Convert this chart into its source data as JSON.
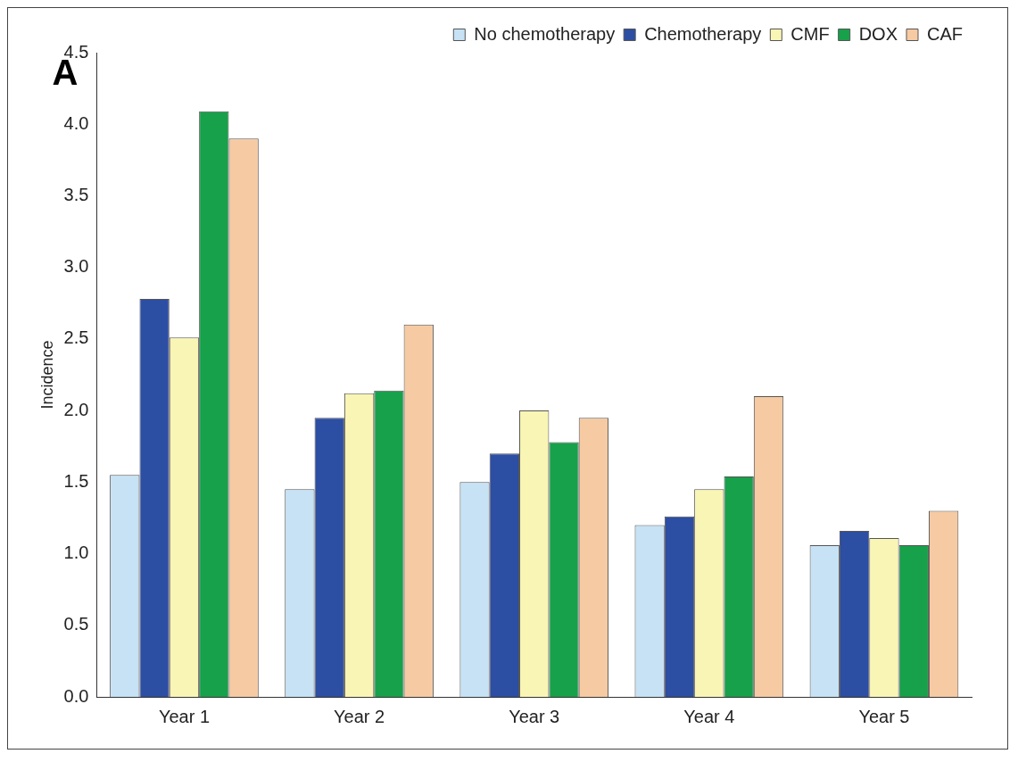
{
  "chart_data": {
    "type": "bar",
    "ylabel": "Incidence",
    "annotations": [
      "A"
    ],
    "categories": [
      "Year 1",
      "Year 2",
      "Year 3",
      "Year 4",
      "Year 5"
    ],
    "series": [
      {
        "name": "No chemotherapy",
        "color": "#c6e2f4",
        "values": [
          1.55,
          1.45,
          1.5,
          1.2,
          1.06
        ]
      },
      {
        "name": "Chemotherapy",
        "color": "#2c4ea3",
        "values": [
          2.78,
          1.95,
          1.7,
          1.26,
          1.16
        ]
      },
      {
        "name": "CMF",
        "color": "#f9f5b4",
        "values": [
          2.51,
          2.12,
          2.0,
          1.45,
          1.11
        ]
      },
      {
        "name": "DOX",
        "color": "#17a14a",
        "values": [
          4.09,
          2.14,
          1.78,
          1.54,
          1.06
        ]
      },
      {
        "name": "CAF",
        "color": "#f6caa2",
        "values": [
          3.9,
          2.6,
          1.95,
          2.1,
          1.3
        ]
      }
    ],
    "ylim": [
      0,
      4.5
    ],
    "yticks": [
      {
        "value": 0,
        "label": "0.0"
      },
      0.5,
      {
        "value": 1,
        "label": "1.0"
      },
      1.5,
      {
        "value": 2,
        "label": "2.0"
      },
      2.5,
      {
        "value": 3,
        "label": "3.0"
      },
      3.5,
      {
        "value": 4,
        "label": "4.0"
      },
      4.5
    ],
    "grid": false,
    "legend": "top right"
  }
}
